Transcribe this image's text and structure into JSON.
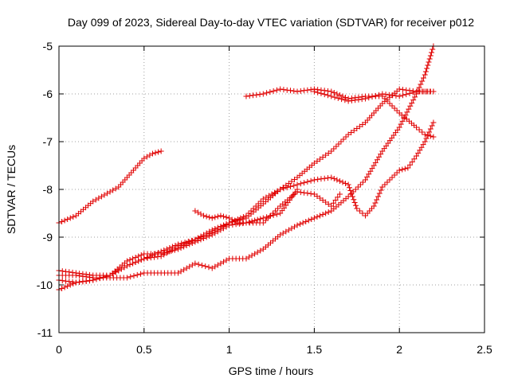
{
  "chart_data": {
    "type": "scatter",
    "title": "Day 099 of 2023, Sidereal Day-to-day VTEC variation (SDTVAR) for receiver p012",
    "xlabel": "GPS time / hours",
    "ylabel": "SDTVAR / TECUs",
    "xlim": [
      0,
      2.5
    ],
    "ylim": [
      -11,
      -5
    ],
    "xticks": [
      "0",
      "0.5",
      "1",
      "1.5",
      "2",
      "2.5"
    ],
    "yticks": [
      "-11",
      "-10",
      "-9",
      "-8",
      "-7",
      "-6",
      "-5"
    ],
    "grid": true,
    "marker": "plus",
    "color": "#e00000",
    "series": [
      {
        "points": [
          [
            0.0,
            -8.7
          ],
          [
            0.1,
            -8.55
          ],
          [
            0.2,
            -8.25
          ],
          [
            0.3,
            -8.05
          ],
          [
            0.35,
            -7.95
          ],
          [
            0.4,
            -7.75
          ],
          [
            0.45,
            -7.55
          ],
          [
            0.5,
            -7.35
          ],
          [
            0.55,
            -7.25
          ],
          [
            0.6,
            -7.2
          ]
        ]
      },
      {
        "points": [
          [
            0.0,
            -10.1
          ],
          [
            0.1,
            -9.95
          ],
          [
            0.2,
            -9.9
          ],
          [
            0.3,
            -9.8
          ],
          [
            0.4,
            -9.6
          ],
          [
            0.5,
            -9.45
          ],
          [
            0.6,
            -9.3
          ],
          [
            0.7,
            -9.15
          ],
          [
            0.8,
            -9.05
          ],
          [
            0.9,
            -8.85
          ],
          [
            1.0,
            -8.7
          ],
          [
            1.1,
            -8.55
          ],
          [
            1.2,
            -8.2
          ],
          [
            1.3,
            -8.0
          ],
          [
            1.4,
            -7.9
          ],
          [
            1.5,
            -7.8
          ],
          [
            1.6,
            -7.75
          ],
          [
            1.7,
            -7.9
          ],
          [
            1.75,
            -8.4
          ],
          [
            1.8,
            -8.55
          ],
          [
            1.85,
            -8.35
          ],
          [
            1.9,
            -7.95
          ],
          [
            2.0,
            -7.6
          ],
          [
            2.05,
            -7.55
          ],
          [
            2.1,
            -7.3
          ],
          [
            2.15,
            -7.0
          ],
          [
            2.2,
            -6.6
          ]
        ]
      },
      {
        "points": [
          [
            0.0,
            -9.8
          ],
          [
            0.1,
            -9.8
          ],
          [
            0.2,
            -9.85
          ],
          [
            0.3,
            -9.85
          ],
          [
            0.4,
            -9.85
          ],
          [
            0.5,
            -9.75
          ],
          [
            0.6,
            -9.75
          ],
          [
            0.7,
            -9.75
          ],
          [
            0.8,
            -9.55
          ],
          [
            0.9,
            -9.65
          ],
          [
            1.0,
            -9.45
          ],
          [
            1.1,
            -9.45
          ],
          [
            1.2,
            -9.25
          ],
          [
            1.3,
            -8.95
          ],
          [
            1.4,
            -8.75
          ],
          [
            1.5,
            -8.6
          ],
          [
            1.6,
            -8.45
          ],
          [
            1.7,
            -8.15
          ],
          [
            1.8,
            -7.8
          ],
          [
            1.9,
            -7.2
          ],
          [
            2.0,
            -6.7
          ],
          [
            2.1,
            -6.0
          ],
          [
            2.15,
            -5.6
          ],
          [
            2.2,
            -5.0
          ]
        ]
      },
      {
        "points": [
          [
            0.0,
            -9.7
          ],
          [
            0.1,
            -9.75
          ],
          [
            0.2,
            -9.8
          ],
          [
            0.3,
            -9.8
          ],
          [
            0.4,
            -9.6
          ],
          [
            0.5,
            -9.45
          ],
          [
            0.6,
            -9.4
          ],
          [
            0.7,
            -9.2
          ],
          [
            0.8,
            -9.05
          ],
          [
            0.9,
            -8.9
          ],
          [
            1.0,
            -8.7
          ],
          [
            1.1,
            -8.6
          ],
          [
            1.2,
            -8.3
          ],
          [
            1.3,
            -8.0
          ],
          [
            1.4,
            -7.75
          ],
          [
            1.5,
            -7.45
          ],
          [
            1.6,
            -7.2
          ],
          [
            1.7,
            -6.85
          ],
          [
            1.8,
            -6.6
          ],
          [
            1.9,
            -6.2
          ],
          [
            2.0,
            -5.9
          ],
          [
            2.1,
            -5.95
          ],
          [
            2.2,
            -5.95
          ]
        ]
      },
      {
        "points": [
          [
            0.0,
            -9.9
          ],
          [
            0.1,
            -9.95
          ],
          [
            0.2,
            -9.9
          ],
          [
            0.3,
            -9.8
          ],
          [
            0.4,
            -9.5
          ],
          [
            0.5,
            -9.35
          ],
          [
            0.6,
            -9.35
          ],
          [
            0.7,
            -9.25
          ],
          [
            0.8,
            -9.1
          ],
          [
            0.9,
            -8.95
          ],
          [
            1.0,
            -8.75
          ],
          [
            1.1,
            -8.7
          ],
          [
            1.2,
            -8.7
          ],
          [
            1.3,
            -8.35
          ],
          [
            1.4,
            -8.05
          ],
          [
            1.5,
            -8.1
          ],
          [
            1.6,
            -8.35
          ],
          [
            1.65,
            -8.1
          ]
        ]
      },
      {
        "points": [
          [
            0.8,
            -8.45
          ],
          [
            0.85,
            -8.55
          ],
          [
            0.9,
            -8.6
          ],
          [
            0.95,
            -8.55
          ],
          [
            1.0,
            -8.6
          ],
          [
            1.05,
            -8.7
          ],
          [
            1.1,
            -8.7
          ],
          [
            1.15,
            -8.65
          ],
          [
            1.2,
            -8.6
          ],
          [
            1.3,
            -8.5
          ],
          [
            1.4,
            -8.0
          ]
        ]
      },
      {
        "points": [
          [
            1.1,
            -6.05
          ],
          [
            1.2,
            -6.0
          ],
          [
            1.3,
            -5.9
          ],
          [
            1.4,
            -5.95
          ],
          [
            1.5,
            -5.9
          ],
          [
            1.6,
            -5.95
          ],
          [
            1.7,
            -6.1
          ],
          [
            1.8,
            -6.05
          ],
          [
            1.9,
            -6.05
          ],
          [
            2.0,
            -6.4
          ],
          [
            2.1,
            -6.7
          ],
          [
            2.15,
            -6.85
          ],
          [
            2.2,
            -6.9
          ]
        ]
      },
      {
        "points": [
          [
            1.5,
            -5.95
          ],
          [
            1.6,
            -6.05
          ],
          [
            1.7,
            -6.15
          ],
          [
            1.8,
            -6.1
          ],
          [
            1.9,
            -6.0
          ],
          [
            2.0,
            -6.05
          ],
          [
            2.1,
            -5.95
          ],
          [
            2.15,
            -5.95
          ],
          [
            2.2,
            -5.95
          ]
        ]
      }
    ]
  }
}
